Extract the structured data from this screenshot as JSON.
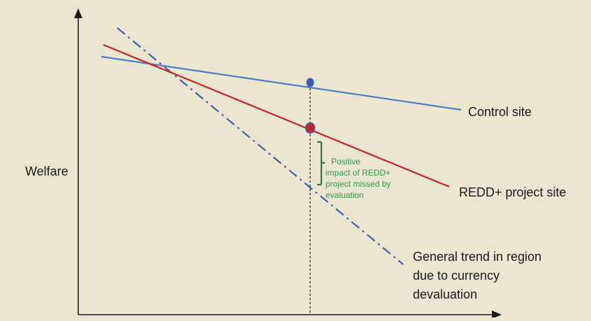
{
  "axes": {
    "y_label": "Welfare"
  },
  "lines": {
    "control": {
      "label": "Control site",
      "color": "#4a7ec4",
      "style": "solid"
    },
    "project": {
      "label": "REDD+ project site",
      "color": "#c4242a",
      "style": "solid"
    },
    "trend": {
      "label_lines": [
        "General trend in region",
        "due to currency",
        "devaluation"
      ],
      "color": "#3a5fb0",
      "style": "dash-dot"
    }
  },
  "markers": {
    "control_point_color": "#3a5fb0",
    "project_point_color": "#c4242a",
    "evaluation_line_style": "dotted"
  },
  "annotation": {
    "text_lines": [
      "Positive",
      "impact of REDD+",
      "project missed by",
      "evaluation"
    ],
    "color": "#2e9a45"
  },
  "colors": {
    "background": "#ebe6cf",
    "axis": "#1a1a1a"
  }
}
